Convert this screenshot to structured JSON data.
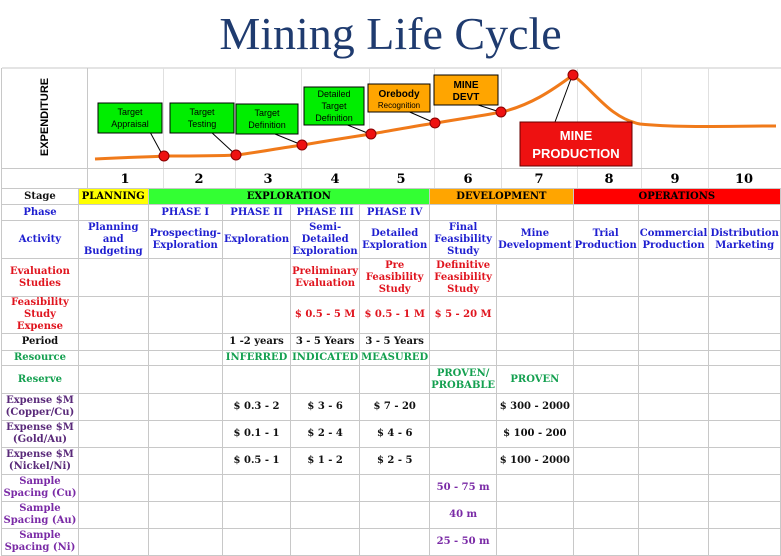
{
  "title": "Mining Life Cycle",
  "y_axis_label": "EXPENDITURE",
  "callouts": [
    {
      "id": "target-appraisal",
      "label": "Target Appraisal",
      "color": "#00ee00"
    },
    {
      "id": "target-testing",
      "label": "Target Testing",
      "color": "#00ee00"
    },
    {
      "id": "target-definition",
      "label": "Target Definition",
      "color": "#00ee00"
    },
    {
      "id": "detailed-target-definition",
      "label": "Detailed Target Definition",
      "color": "#00ee00"
    },
    {
      "id": "orebody-recognition",
      "label": "Orebody",
      "sublabel": "Recognition",
      "color": "#ffa500"
    },
    {
      "id": "mine-devt",
      "label": "MINE DEVT",
      "color": "#ffa500"
    },
    {
      "id": "mine-production",
      "label": "MINE PRODUCTION",
      "color": "#ee1111"
    }
  ],
  "stage_numbers": [
    "1",
    "2",
    "3",
    "4",
    "5",
    "6",
    "7",
    "8",
    "9",
    "10"
  ],
  "rows": {
    "stage": {
      "label": "Stage",
      "groups": [
        {
          "label": "PLANNING",
          "span": 1,
          "color": "#ffff00"
        },
        {
          "label": "EXPLORATION",
          "span": 4,
          "color": "#33ff33"
        },
        {
          "label": "DEVELOPMENT",
          "span": 2,
          "color": "#ffa500"
        },
        {
          "label": "OPERATIONS",
          "span": 3,
          "color": "#ff0000"
        }
      ]
    },
    "phase": {
      "label": "Phase",
      "cells": [
        "",
        "PHASE I",
        "PHASE II",
        "PHASE III",
        "PHASE IV",
        "",
        "",
        "",
        "",
        ""
      ]
    },
    "activity": {
      "label": "Activity",
      "cells": [
        "Planning and Budgeting",
        "Prospecting-Exploration",
        "Exploration",
        "Semi-Detailed Exploration",
        "Detailed Exploration",
        "Final Feasibility Study",
        "Mine Development",
        "Trial Production",
        "Commercial Production",
        "Distribution Marketing"
      ]
    },
    "evaluation": {
      "label": "Evaluation Studies",
      "cells": [
        "",
        "",
        "",
        "Preliminary Evaluation",
        "Pre Feasibility Study",
        "Definitive Feasibility Study",
        "",
        "",
        "",
        ""
      ]
    },
    "feasibility_expense": {
      "label": "Feasibility Study Expense",
      "cells": [
        "",
        "",
        "",
        "$ 0.5 - 5 M",
        "$ 0.5 - 1 M",
        "$ 5 - 20 M",
        "",
        "",
        "",
        ""
      ]
    },
    "period": {
      "label": "Period",
      "cells": [
        "",
        "",
        "1 -2 years",
        "3 - 5 Years",
        "3 - 5 Years",
        "",
        "",
        "",
        "",
        ""
      ]
    },
    "resource": {
      "label": "Resource",
      "cells": [
        "",
        "",
        "INFERRED",
        "INDICATED",
        "MEASURED",
        "",
        "",
        "",
        "",
        ""
      ]
    },
    "reserve": {
      "label": "Reserve",
      "cells": [
        "",
        "",
        "",
        "",
        "",
        "PROVEN/ PROBABLE",
        "PROVEN",
        "",
        "",
        ""
      ]
    },
    "expense_cu": {
      "label": "Expense $M (Copper/Cu)",
      "cells": [
        "",
        "",
        "$ 0.3 - 2",
        "$ 3 - 6",
        "$ 7 - 20",
        "",
        "$ 300 - 2000",
        "",
        "",
        ""
      ]
    },
    "expense_au": {
      "label": "Expense $M (Gold/Au)",
      "cells": [
        "",
        "",
        "$ 0.1 - 1",
        "$ 2 - 4",
        "$ 4 - 6",
        "",
        "$ 100 - 200",
        "",
        "",
        ""
      ]
    },
    "expense_ni": {
      "label": "Expense $M (Nickel/Ni)",
      "cells": [
        "",
        "",
        "$ 0.5 - 1",
        "$ 1 - 2",
        "$ 2 - 5",
        "",
        "$ 100 - 2000",
        "",
        "",
        ""
      ]
    },
    "spacing_cu": {
      "label": "Sample Spacing (Cu)",
      "cells": [
        "",
        "",
        "",
        "",
        "",
        "50 - 75 m",
        "",
        "",
        "",
        ""
      ]
    },
    "spacing_au": {
      "label": "Sample Spacing (Au)",
      "cells": [
        "",
        "",
        "",
        "",
        "",
        "40 m",
        "",
        "",
        "",
        ""
      ]
    },
    "spacing_ni": {
      "label": "Sample Spacing (Ni)",
      "cells": [
        "",
        "",
        "",
        "",
        "",
        "25 - 50 m",
        "",
        "",
        "",
        ""
      ]
    }
  }
}
